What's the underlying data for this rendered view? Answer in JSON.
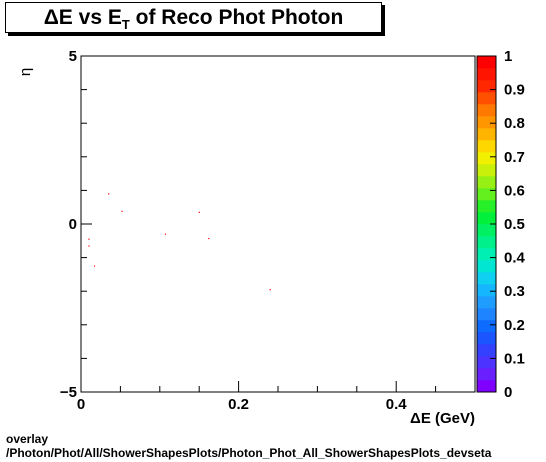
{
  "title": {
    "delta": "ΔE vs E",
    "sub": "T",
    "rest": " of Reco Phot Photon"
  },
  "footer": {
    "line1": "overlay",
    "line2": "/Photon/Phot/All/ShowerShapesPlots/Photon_Phot_All_ShowerShapesPlots_devseta"
  },
  "chart_data": {
    "type": "scatter",
    "title": "ΔE vs E_T of Reco Phot Photon",
    "xlabel": "ΔE (GeV)",
    "ylabel": "η",
    "xlim": [
      0,
      0.5
    ],
    "ylim": [
      -5,
      5
    ],
    "x_ticks": [
      0,
      0.2,
      0.4
    ],
    "x_tick_labels": [
      "0",
      "0.2",
      "0.4"
    ],
    "y_ticks": [
      -5,
      0,
      5
    ],
    "y_tick_labels": [
      "−5",
      "0",
      "5"
    ],
    "points": [
      {
        "x": 0.035,
        "y": 0.9
      },
      {
        "x": 0.052,
        "y": 0.38
      },
      {
        "x": 0.15,
        "y": 0.35
      },
      {
        "x": 0.107,
        "y": -0.3
      },
      {
        "x": 0.162,
        "y": -0.43
      },
      {
        "x": 0.01,
        "y": -0.45
      },
      {
        "x": 0.01,
        "y": -0.65
      },
      {
        "x": 0.017,
        "y": -1.25
      },
      {
        "x": 0.24,
        "y": -1.95
      }
    ],
    "point_color": "#ff0000",
    "colorbar": {
      "min": 0,
      "max": 1,
      "tick_labels": [
        "0",
        "0.1",
        "0.2",
        "0.3",
        "0.4",
        "0.5",
        "0.6",
        "0.7",
        "0.8",
        "0.9",
        "1"
      ],
      "colors": [
        "#7f00ff",
        "#6a1fff",
        "#4c33ff",
        "#3341ff",
        "#1a55ff",
        "#0d6bff",
        "#1f84ff",
        "#1f9dff",
        "#16b6ff",
        "#0fd0f0",
        "#00e6d2",
        "#00f0b4",
        "#00f08c",
        "#00f064",
        "#00f03c",
        "#28f028",
        "#64f01e",
        "#96f014",
        "#c8f00a",
        "#f0f000",
        "#ffd700",
        "#ffb400",
        "#ff9600",
        "#ff7800",
        "#ff5000",
        "#ff2800",
        "#ff1400",
        "#ff0000"
      ]
    },
    "grid": false
  }
}
